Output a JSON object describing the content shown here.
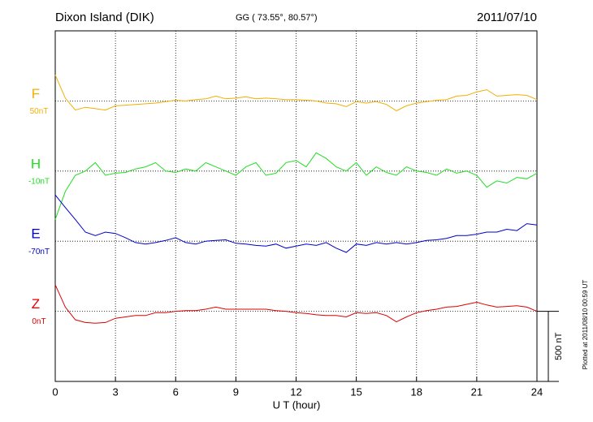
{
  "chart_data": {
    "type": "line",
    "title": "Dixon Island (DIK)",
    "subtitle": "GG ( 73.55°,  80.57°)",
    "date": "2011/07/10",
    "xlabel": "U T (hour)",
    "footnote": "Plotted at 2011/08/10 00:59 UT",
    "xlim": [
      0,
      24
    ],
    "xticks": [
      0,
      3,
      6,
      9,
      12,
      15,
      18,
      21,
      24
    ],
    "ylim": [
      -500,
      2000
    ],
    "yticks": [
      0,
      500,
      1000,
      1500
    ],
    "grid": true,
    "scale_bar": {
      "label": "500 nT",
      "range": [
        -500,
        0
      ]
    },
    "x": [
      0,
      0.5,
      1,
      1.5,
      2,
      2.5,
      3,
      3.5,
      4,
      4.5,
      5,
      5.5,
      6,
      6.5,
      7,
      7.5,
      8,
      8.5,
      9,
      9.5,
      10,
      10.5,
      11,
      11.5,
      12,
      12.5,
      13,
      13.5,
      14,
      14.5,
      15,
      15.5,
      16,
      16.5,
      17,
      17.5,
      18,
      18.5,
      19,
      19.5,
      20,
      20.5,
      21,
      21.5,
      22,
      22.5,
      23,
      23.5,
      24
    ],
    "series": [
      {
        "name": "F",
        "baseline_label": "50nT",
        "color": "#f0b000",
        "values": [
          1685,
          1520,
          1435,
          1455,
          1445,
          1435,
          1465,
          1470,
          1475,
          1480,
          1485,
          1495,
          1505,
          1500,
          1510,
          1515,
          1535,
          1515,
          1520,
          1530,
          1515,
          1520,
          1515,
          1510,
          1510,
          1505,
          1500,
          1485,
          1480,
          1460,
          1495,
          1485,
          1495,
          1475,
          1430,
          1465,
          1485,
          1495,
          1505,
          1510,
          1535,
          1540,
          1565,
          1580,
          1535,
          1540,
          1545,
          1540,
          1510
        ]
      },
      {
        "name": "H",
        "baseline_label": "-10nT",
        "color": "#22dd22",
        "values": [
          655,
          855,
          970,
          1000,
          1060,
          970,
          985,
          990,
          1015,
          1030,
          1060,
          1000,
          990,
          1015,
          1000,
          1060,
          1030,
          1000,
          970,
          1030,
          1060,
          970,
          985,
          1060,
          1075,
          1030,
          1130,
          1090,
          1030,
          1000,
          1060,
          970,
          1030,
          990,
          970,
          1030,
          1000,
          990,
          970,
          1015,
          985,
          1000,
          970,
          885,
          930,
          915,
          955,
          945,
          985
        ]
      },
      {
        "name": "E",
        "baseline_label": "-70nT",
        "color": "#0000cc",
        "values": [
          830,
          740,
          655,
          565,
          540,
          565,
          555,
          525,
          490,
          480,
          490,
          505,
          525,
          490,
          480,
          500,
          505,
          510,
          485,
          480,
          470,
          465,
          480,
          450,
          465,
          480,
          470,
          490,
          450,
          420,
          480,
          470,
          490,
          480,
          490,
          480,
          490,
          505,
          510,
          520,
          540,
          540,
          550,
          565,
          565,
          585,
          575,
          625,
          615
        ]
      },
      {
        "name": "Z",
        "baseline_label": "0nT",
        "color": "#dd0000",
        "values": [
          190,
          30,
          -60,
          -80,
          -85,
          -80,
          -50,
          -40,
          -30,
          -30,
          -10,
          -10,
          0,
          5,
          5,
          15,
          30,
          15,
          15,
          15,
          15,
          15,
          5,
          0,
          -10,
          -15,
          -25,
          -30,
          -30,
          -40,
          -10,
          -15,
          -10,
          -30,
          -75,
          -40,
          -10,
          5,
          15,
          30,
          35,
          50,
          65,
          45,
          30,
          35,
          40,
          30,
          0
        ]
      }
    ]
  }
}
